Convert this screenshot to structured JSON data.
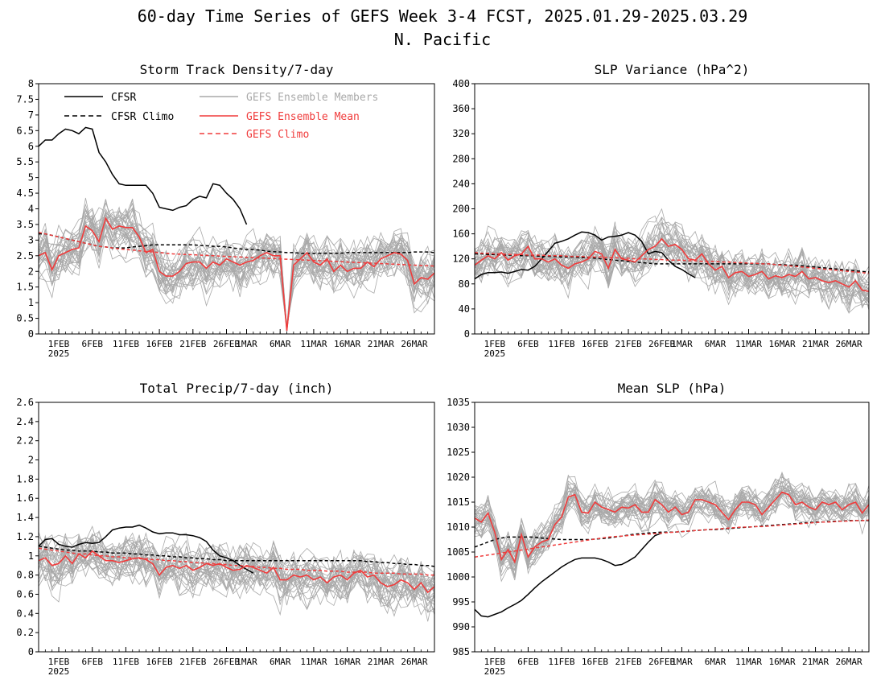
{
  "figure": {
    "title_line1": "60-day Time Series of GEFS Week 3-4 FCST, 2025.01.29-2025.03.29",
    "title_line2": "N. Pacific"
  },
  "colors": {
    "cfsr": "#000000",
    "cfsr_climo": "#000000",
    "members": "#a9a9a9",
    "ens_mean": "#f03c3c",
    "gefs_climo": "#f03c3c"
  },
  "legend": {
    "cfsr": "CFSR",
    "cfsr_climo": "CFSR Climo",
    "members": "GEFS Ensemble Members",
    "ens_mean": "GEFS Ensemble Mean",
    "gefs_climo": "GEFS Climo"
  },
  "x_axis": {
    "start_date": "2025-01-29",
    "n_days": 60,
    "tick_labels": [
      "1FEB",
      "6FEB",
      "11FEB",
      "16FEB",
      "21FEB",
      "26FEB",
      "1MAR",
      "6MAR",
      "11MAR",
      "16MAR",
      "21MAR",
      "26MAR"
    ],
    "tick_day_index": [
      3,
      8,
      13,
      18,
      23,
      28,
      31,
      36,
      41,
      46,
      51,
      56
    ],
    "year_label": "2025"
  },
  "chart_data": [
    {
      "type": "line",
      "title": "Storm Track Density/7-day",
      "ylim": [
        0,
        8
      ],
      "yticks": [
        "0",
        "0.5",
        "1",
        "1.5",
        "2",
        "2.5",
        "3",
        "3.5",
        "4",
        "4.5",
        "5",
        "5.5",
        "6",
        "6.5",
        "7",
        "7.5",
        "8"
      ],
      "legend": "top-left",
      "member_count": 30,
      "series": [
        {
          "name": "CFSR",
          "style": "solid-black",
          "values": [
            6.0,
            6.2,
            6.2,
            6.4,
            6.55,
            6.5,
            6.4,
            6.6,
            6.55,
            5.8,
            5.5,
            5.1,
            4.8,
            4.75,
            4.75,
            4.75,
            4.75,
            4.5,
            4.05,
            4.0,
            3.95,
            4.05,
            4.1,
            4.3,
            4.4,
            4.35,
            4.8,
            4.75,
            4.5,
            4.3,
            4.0,
            3.5
          ]
        },
        {
          "name": "CFSR Climo",
          "style": "dashed-black",
          "values": [
            3.2,
            3.2,
            3.15,
            3.1,
            3.05,
            3.0,
            2.95,
            2.9,
            2.85,
            2.8,
            2.78,
            2.75,
            2.75,
            2.75,
            2.78,
            2.8,
            2.82,
            2.85,
            2.85,
            2.85,
            2.85,
            2.85,
            2.85,
            2.85,
            2.83,
            2.82,
            2.8,
            2.8,
            2.78,
            2.75,
            2.72,
            2.7,
            2.7,
            2.68,
            2.65,
            2.63,
            2.62,
            2.6,
            2.6,
            2.58,
            2.58,
            2.58,
            2.58,
            2.58,
            2.58,
            2.58,
            2.6,
            2.6,
            2.6,
            2.6,
            2.6,
            2.6,
            2.6,
            2.6,
            2.6,
            2.6,
            2.62,
            2.62,
            2.62,
            2.6
          ]
        },
        {
          "name": "GEFS Ensemble Mean",
          "style": "solid-red",
          "values": [
            2.5,
            2.6,
            2.05,
            2.5,
            2.6,
            2.7,
            2.75,
            3.45,
            3.3,
            2.95,
            3.7,
            3.35,
            3.45,
            3.4,
            3.4,
            3.1,
            2.6,
            2.7,
            2.0,
            1.85,
            1.85,
            2.0,
            2.25,
            2.3,
            2.3,
            2.1,
            2.3,
            2.2,
            2.4,
            2.3,
            2.2,
            2.3,
            2.35,
            2.5,
            2.6,
            2.5,
            2.5,
            0.1,
            2.2,
            2.4,
            2.6,
            2.3,
            2.2,
            2.4,
            2.0,
            2.2,
            2.0,
            2.1,
            2.1,
            2.3,
            2.15,
            2.4,
            2.5,
            2.6,
            2.55,
            2.35,
            1.6,
            1.8,
            1.75,
            1.95
          ]
        },
        {
          "name": "GEFS Climo",
          "style": "dashed-red",
          "values": [
            3.25,
            3.2,
            3.15,
            3.1,
            3.05,
            3.0,
            2.95,
            2.9,
            2.85,
            2.8,
            2.78,
            2.75,
            2.72,
            2.7,
            2.68,
            2.66,
            2.64,
            2.62,
            2.6,
            2.58,
            2.56,
            2.55,
            2.54,
            2.53,
            2.52,
            2.51,
            2.5,
            2.49,
            2.48,
            2.47,
            2.46,
            2.45,
            2.44,
            2.43,
            2.42,
            2.41,
            2.4,
            2.39,
            2.38,
            2.37,
            2.36,
            2.35,
            2.34,
            2.33,
            2.32,
            2.31,
            2.3,
            2.29,
            2.28,
            2.27,
            2.26,
            2.25,
            2.24,
            2.23,
            2.22,
            2.21,
            2.2,
            2.19,
            2.18,
            2.17
          ]
        }
      ]
    },
    {
      "type": "line",
      "title": "SLP Variance (hPa^2)",
      "ylim": [
        0,
        400
      ],
      "yticks": [
        "0",
        "40",
        "80",
        "120",
        "160",
        "200",
        "240",
        "280",
        "320",
        "360",
        "400"
      ],
      "member_count": 30,
      "series": [
        {
          "name": "CFSR",
          "style": "solid-black",
          "values": [
            88,
            95,
            98,
            98,
            99,
            97,
            100,
            103,
            102,
            108,
            120,
            132,
            145,
            148,
            152,
            158,
            163,
            162,
            158,
            150,
            155,
            156,
            158,
            162,
            158,
            148,
            128,
            132,
            130,
            118,
            108,
            103,
            96,
            90
          ]
        },
        {
          "name": "CFSR Climo",
          "style": "dashed-black",
          "values": [
            128,
            128,
            127,
            127,
            126,
            126,
            126,
            125,
            125,
            125,
            124,
            124,
            124,
            123,
            123,
            123,
            122,
            122,
            121,
            120,
            119,
            118,
            117,
            116,
            115,
            114,
            113,
            112,
            112,
            112,
            112,
            112,
            112,
            112,
            112,
            112,
            112,
            112,
            112,
            112,
            112,
            112,
            112,
            112,
            112,
            111,
            111,
            110,
            110,
            109,
            108,
            107,
            106,
            105,
            104,
            103,
            102,
            101,
            100,
            99
          ]
        },
        {
          "name": "GEFS Ensemble Mean",
          "style": "solid-red",
          "values": [
            110,
            118,
            125,
            120,
            130,
            118,
            125,
            128,
            140,
            120,
            120,
            115,
            120,
            110,
            105,
            112,
            115,
            120,
            132,
            128,
            105,
            135,
            120,
            118,
            115,
            125,
            135,
            140,
            152,
            140,
            143,
            135,
            120,
            118,
            128,
            112,
            102,
            108,
            90,
            98,
            100,
            92,
            95,
            100,
            88,
            93,
            90,
            95,
            92,
            100,
            88,
            90,
            85,
            82,
            85,
            80,
            75,
            85,
            70,
            68
          ]
        },
        {
          "name": "GEFS Climo",
          "style": "dashed-red",
          "values": [
            130,
            129,
            129,
            128,
            128,
            127,
            127,
            127,
            126,
            126,
            126,
            125,
            125,
            125,
            124,
            124,
            124,
            123,
            123,
            123,
            122,
            122,
            121,
            121,
            120,
            120,
            120,
            119,
            119,
            118,
            118,
            118,
            117,
            117,
            116,
            116,
            116,
            115,
            115,
            114,
            114,
            113,
            113,
            112,
            112,
            111,
            110,
            109,
            108,
            107,
            106,
            105,
            104,
            103,
            102,
            101,
            100,
            99,
            98,
            97
          ]
        }
      ]
    },
    {
      "type": "line",
      "title": "Total Precip/7-day (inch)",
      "ylim": [
        0,
        2.6
      ],
      "yticks": [
        "0",
        "0.2",
        "0.4",
        "0.6",
        "0.8",
        "1",
        "1.2",
        "1.4",
        "1.6",
        "1.8",
        "2",
        "2.2",
        "2.4",
        "2.6"
      ],
      "member_count": 30,
      "series": [
        {
          "name": "CFSR",
          "style": "solid-black",
          "values": [
            1.1,
            1.17,
            1.18,
            1.12,
            1.1,
            1.09,
            1.12,
            1.14,
            1.13,
            1.14,
            1.2,
            1.27,
            1.29,
            1.3,
            1.3,
            1.32,
            1.29,
            1.25,
            1.23,
            1.24,
            1.24,
            1.22,
            1.22,
            1.21,
            1.19,
            1.15,
            1.06,
            1.0,
            0.98,
            0.95,
            0.9,
            0.86,
            0.82
          ]
        },
        {
          "name": "CFSR Climo",
          "style": "dashed-black",
          "values": [
            1.1,
            1.09,
            1.08,
            1.07,
            1.06,
            1.06,
            1.05,
            1.05,
            1.05,
            1.04,
            1.04,
            1.03,
            1.03,
            1.03,
            1.02,
            1.02,
            1.01,
            1.01,
            1.0,
            1.0,
            0.99,
            0.99,
            0.98,
            0.98,
            0.97,
            0.97,
            0.96,
            0.96,
            0.95,
            0.95,
            0.95,
            0.95,
            0.95,
            0.95,
            0.95,
            0.95,
            0.95,
            0.95,
            0.95,
            0.95,
            0.95,
            0.95,
            0.95,
            0.95,
            0.95,
            0.95,
            0.95,
            0.95,
            0.95,
            0.94,
            0.94,
            0.93,
            0.93,
            0.92,
            0.92,
            0.91,
            0.91,
            0.9,
            0.9,
            0.89
          ]
        },
        {
          "name": "GEFS Ensemble Mean",
          "style": "solid-red",
          "values": [
            0.95,
            0.98,
            0.9,
            0.92,
            1.0,
            0.92,
            1.02,
            0.98,
            1.05,
            1.0,
            0.95,
            0.95,
            0.93,
            0.95,
            0.97,
            0.98,
            0.96,
            0.92,
            0.8,
            0.88,
            0.9,
            0.87,
            0.9,
            0.85,
            0.88,
            0.92,
            0.9,
            0.92,
            0.88,
            0.85,
            0.86,
            0.9,
            0.88,
            0.85,
            0.82,
            0.88,
            0.75,
            0.75,
            0.8,
            0.78,
            0.8,
            0.75,
            0.78,
            0.72,
            0.78,
            0.8,
            0.75,
            0.82,
            0.85,
            0.78,
            0.8,
            0.72,
            0.68,
            0.7,
            0.75,
            0.72,
            0.65,
            0.72,
            0.62,
            0.68
          ]
        },
        {
          "name": "GEFS Climo",
          "style": "dashed-red",
          "values": [
            1.08,
            1.07,
            1.06,
            1.05,
            1.04,
            1.03,
            1.02,
            1.02,
            1.01,
            1.0,
            1.0,
            0.99,
            0.99,
            0.98,
            0.98,
            0.97,
            0.97,
            0.96,
            0.96,
            0.95,
            0.95,
            0.94,
            0.94,
            0.93,
            0.93,
            0.92,
            0.92,
            0.91,
            0.91,
            0.9,
            0.9,
            0.89,
            0.89,
            0.88,
            0.88,
            0.87,
            0.87,
            0.86,
            0.86,
            0.86,
            0.85,
            0.85,
            0.85,
            0.84,
            0.84,
            0.84,
            0.83,
            0.83,
            0.83,
            0.83,
            0.82,
            0.82,
            0.82,
            0.82,
            0.81,
            0.81,
            0.81,
            0.81,
            0.8,
            0.8
          ]
        }
      ]
    },
    {
      "type": "line",
      "title": "Mean SLP (hPa)",
      "ylim": [
        985,
        1035
      ],
      "yticks": [
        "985",
        "990",
        "995",
        "1000",
        "1005",
        "1010",
        "1015",
        "1020",
        "1025",
        "1030",
        "1035"
      ],
      "member_count": 30,
      "series": [
        {
          "name": "CFSR",
          "style": "solid-black",
          "values": [
            993.5,
            992.2,
            992.0,
            992.5,
            993.0,
            993.8,
            994.5,
            995.3,
            996.5,
            997.8,
            999.0,
            1000.0,
            1001.0,
            1002.0,
            1002.8,
            1003.5,
            1003.8,
            1003.8,
            1003.8,
            1003.5,
            1003.0,
            1002.3,
            1002.5,
            1003.2,
            1004.0,
            1005.5,
            1007.0,
            1008.3,
            1008.8
          ]
        },
        {
          "name": "CFSR Climo",
          "style": "dashed-black",
          "values": [
            1006.0,
            1006.5,
            1007.0,
            1007.5,
            1007.8,
            1008.0,
            1008.0,
            1008.0,
            1008.0,
            1008.0,
            1007.8,
            1007.7,
            1007.6,
            1007.5,
            1007.5,
            1007.5,
            1007.5,
            1007.5,
            1007.6,
            1007.7,
            1007.8,
            1008.0,
            1008.2,
            1008.4,
            1008.6,
            1008.7,
            1008.8,
            1008.9,
            1009.0,
            1009.0,
            1009.0,
            1009.1,
            1009.2,
            1009.3,
            1009.4,
            1009.5,
            1009.5,
            1009.6,
            1009.7,
            1009.8,
            1009.9,
            1010.0,
            1010.1,
            1010.2,
            1010.3,
            1010.4,
            1010.5,
            1010.6,
            1010.7,
            1010.8,
            1010.9,
            1011.0,
            1011.0,
            1011.1,
            1011.2,
            1011.2,
            1011.3,
            1011.3,
            1011.3,
            1011.3
          ]
        },
        {
          "name": "GEFS Ensemble Mean",
          "style": "solid-red",
          "values": [
            1011.8,
            1011.0,
            1012.8,
            1009.0,
            1003.5,
            1005.5,
            1003.0,
            1008.5,
            1004.0,
            1006.0,
            1007.0,
            1007.5,
            1010.5,
            1012.0,
            1016.0,
            1016.5,
            1013.0,
            1012.8,
            1015.0,
            1014.0,
            1013.5,
            1013.0,
            1014.0,
            1013.8,
            1014.5,
            1013.0,
            1013.0,
            1015.5,
            1014.5,
            1013.0,
            1014.0,
            1012.5,
            1013.0,
            1015.5,
            1015.5,
            1015.0,
            1014.5,
            1013.0,
            1011.5,
            1013.5,
            1015.0,
            1015.0,
            1014.5,
            1012.5,
            1014.0,
            1015.5,
            1017.0,
            1016.5,
            1014.5,
            1015.0,
            1014.0,
            1013.5,
            1015.0,
            1014.5,
            1015.0,
            1013.5,
            1014.5,
            1015.0,
            1012.8,
            1014.5
          ]
        },
        {
          "name": "GEFS Climo",
          "style": "dashed-red",
          "values": [
            1004.0,
            1004.2,
            1004.4,
            1004.6,
            1004.8,
            1005.0,
            1005.2,
            1005.4,
            1005.6,
            1005.8,
            1006.0,
            1006.2,
            1006.4,
            1006.6,
            1006.8,
            1007.0,
            1007.2,
            1007.4,
            1007.6,
            1007.8,
            1008.0,
            1008.1,
            1008.2,
            1008.3,
            1008.4,
            1008.5,
            1008.6,
            1008.7,
            1008.8,
            1008.9,
            1009.0,
            1009.1,
            1009.2,
            1009.3,
            1009.4,
            1009.5,
            1009.6,
            1009.7,
            1009.8,
            1009.9,
            1010.0,
            1010.0,
            1010.1,
            1010.1,
            1010.2,
            1010.3,
            1010.4,
            1010.5,
            1010.6,
            1010.7,
            1010.8,
            1010.9,
            1011.0,
            1011.0,
            1011.1,
            1011.2,
            1011.2,
            1011.3,
            1011.3,
            1011.4
          ]
        }
      ]
    }
  ]
}
